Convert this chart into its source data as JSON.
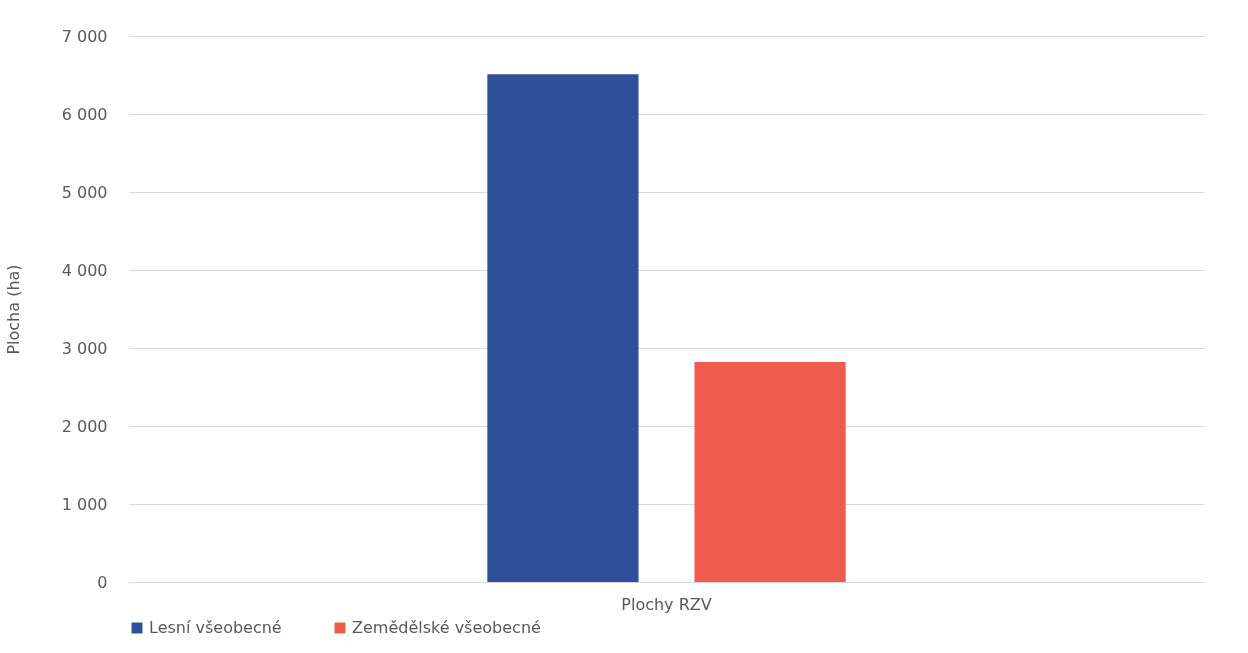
{
  "chart_data": {
    "type": "bar",
    "ylabel": "Plocha (ha)",
    "categories": [
      "Plochy RZV"
    ],
    "series": [
      {
        "name": "Lesní všeobecné",
        "color": "#2f4f9b",
        "values": [
          6510
        ]
      },
      {
        "name": "Zemědělské všeobecné",
        "color": "#ef5b4d",
        "values": [
          2820
        ]
      }
    ],
    "ylim": [
      0,
      7000
    ],
    "yticks": [
      {
        "value": 0,
        "label": "0"
      },
      {
        "value": 1000,
        "label": "1 000"
      },
      {
        "value": 2000,
        "label": "2 000"
      },
      {
        "value": 3000,
        "label": "3 000"
      },
      {
        "value": 4000,
        "label": "4 000"
      },
      {
        "value": 5000,
        "label": "5 000"
      },
      {
        "value": 6000,
        "label": "6 000"
      },
      {
        "value": 7000,
        "label": "7 000"
      }
    ],
    "grid": "y",
    "legend": "bottom"
  }
}
